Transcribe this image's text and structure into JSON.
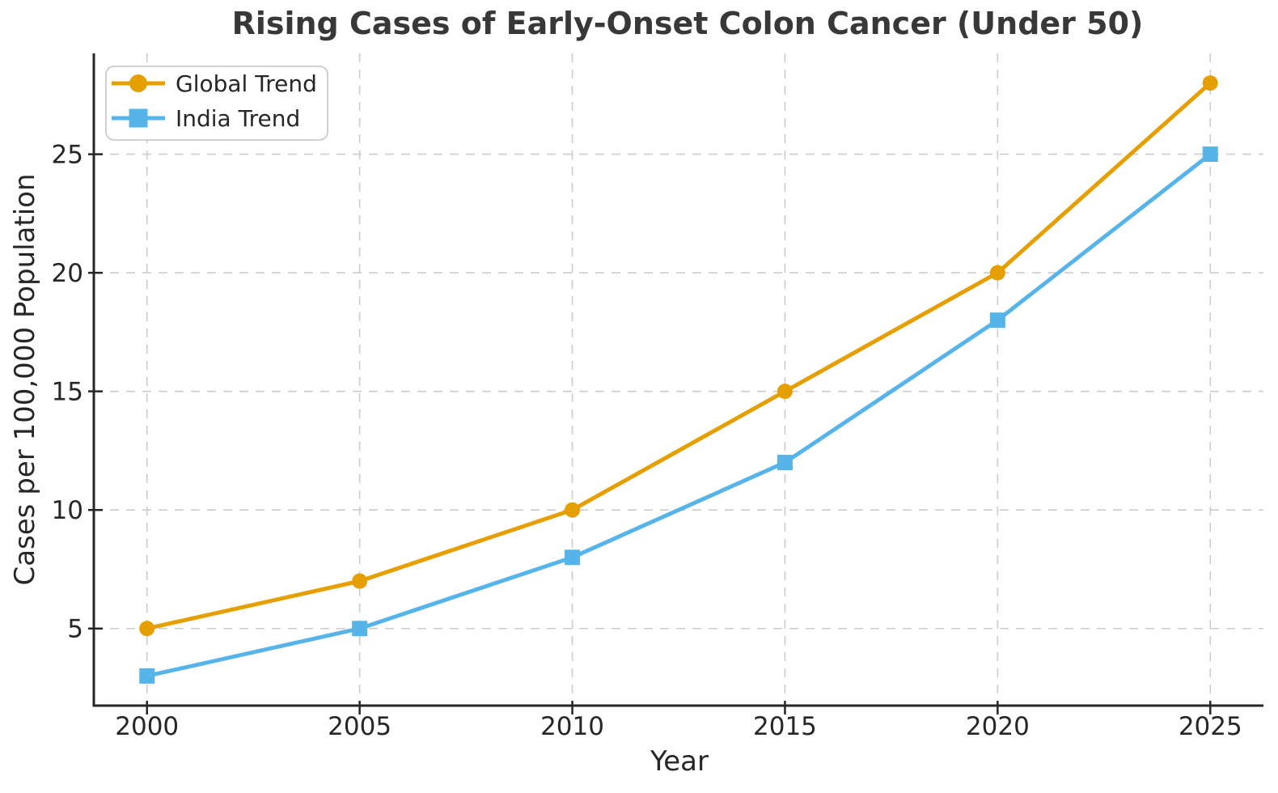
{
  "figure": {
    "title": "Rising Cases of Early-Onset Colon Cancer (Under 50)"
  },
  "chart_data": {
    "type": "line",
    "title": "Rising Cases of Early-Onset Colon Cancer (Under 50)",
    "xlabel": "Year",
    "ylabel": "Cases per 100,000 Population",
    "x": [
      2000,
      2005,
      2010,
      2015,
      2020,
      2025
    ],
    "series": [
      {
        "name": "Global Trend",
        "values": [
          5,
          7,
          10,
          15,
          20,
          28
        ],
        "color": "#E69F00",
        "marker": "circle"
      },
      {
        "name": "India Trend",
        "values": [
          3,
          5,
          8,
          12,
          18,
          25
        ],
        "color": "#56B4E9",
        "marker": "square"
      }
    ],
    "xlim": [
      1998.75,
      2026.25
    ],
    "ylim": [
      1.75,
      29.25
    ],
    "xticks": [
      2000,
      2005,
      2010,
      2015,
      2020,
      2025
    ],
    "yticks": [
      5,
      10,
      15,
      20,
      25
    ],
    "grid": true,
    "grid_linestyle": "dashed",
    "legend_position": "upper left",
    "spines": [
      "left",
      "bottom"
    ]
  },
  "style": {
    "background": "#ffffff",
    "grid_color": "#cccccc",
    "axis_color": "#262626",
    "tick_text_color": "#262626",
    "title_color": "#383838",
    "legend_border_color": "#cccccc",
    "legend_background": "#ffffff"
  }
}
